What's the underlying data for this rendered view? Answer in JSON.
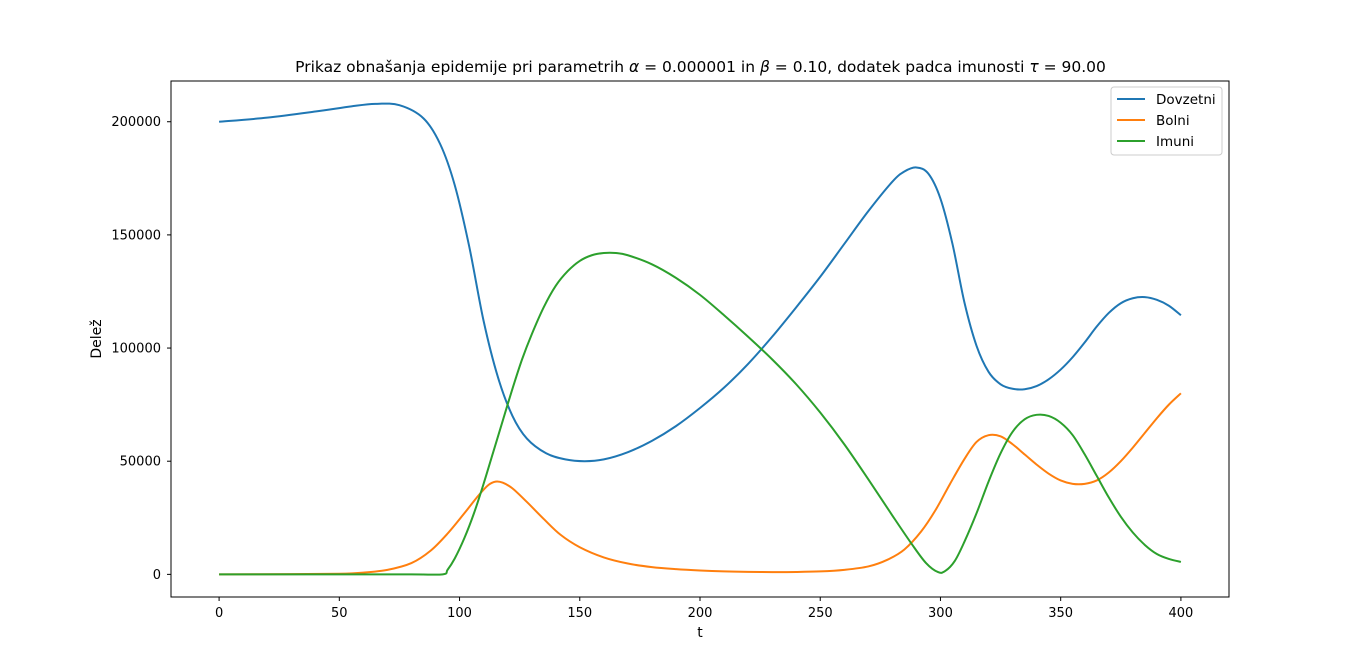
{
  "chart_data": {
    "type": "line",
    "title": "Prikaz obnašanja epidemije pri parametrih α = 0.000001 in β = 0.10, dodatek padca imunosti τ = 90.00",
    "title_parts": {
      "text1": "Prikaz obnašanja epidemije pri parametrih ",
      "alpha_sym": "α",
      "text2": " = 0.000001 in ",
      "beta_sym": "β",
      "text3": " = 0.10, dodatek padca imunosti ",
      "tau_sym": "τ",
      "text4": " = 90.00"
    },
    "xlabel": "t",
    "ylabel": "Delež",
    "xlim": [
      -20,
      420
    ],
    "ylim": [
      -10000,
      218000
    ],
    "xticks": [
      0,
      50,
      100,
      150,
      200,
      250,
      300,
      350,
      400
    ],
    "yticks": [
      0,
      50000,
      100000,
      150000,
      200000
    ],
    "legend_position": "top-right",
    "grid": false,
    "series": [
      {
        "name": "Dovzetni",
        "color": "#1f77b4",
        "points": [
          [
            0,
            200000
          ],
          [
            20,
            201800
          ],
          [
            40,
            204500
          ],
          [
            55,
            206800
          ],
          [
            65,
            207900
          ],
          [
            75,
            207300
          ],
          [
            85,
            201500
          ],
          [
            92,
            190000
          ],
          [
            98,
            172000
          ],
          [
            104,
            145000
          ],
          [
            110,
            112000
          ],
          [
            116,
            87000
          ],
          [
            122,
            70000
          ],
          [
            128,
            60000
          ],
          [
            136,
            53500
          ],
          [
            144,
            50800
          ],
          [
            152,
            50000
          ],
          [
            160,
            50800
          ],
          [
            170,
            54000
          ],
          [
            180,
            59000
          ],
          [
            190,
            65500
          ],
          [
            200,
            73500
          ],
          [
            210,
            82500
          ],
          [
            220,
            93000
          ],
          [
            230,
            105000
          ],
          [
            240,
            118000
          ],
          [
            250,
            131500
          ],
          [
            260,
            146000
          ],
          [
            270,
            160500
          ],
          [
            280,
            173500
          ],
          [
            285,
            178000
          ],
          [
            290,
            179800
          ],
          [
            295,
            177000
          ],
          [
            300,
            166000
          ],
          [
            305,
            146000
          ],
          [
            310,
            120000
          ],
          [
            315,
            101000
          ],
          [
            320,
            89500
          ],
          [
            325,
            84000
          ],
          [
            330,
            82000
          ],
          [
            335,
            81800
          ],
          [
            340,
            83200
          ],
          [
            345,
            86200
          ],
          [
            350,
            90500
          ],
          [
            355,
            96000
          ],
          [
            360,
            102500
          ],
          [
            365,
            109500
          ],
          [
            370,
            115500
          ],
          [
            375,
            119800
          ],
          [
            380,
            122000
          ],
          [
            385,
            122500
          ],
          [
            390,
            121300
          ],
          [
            395,
            118700
          ],
          [
            400,
            114500
          ]
        ]
      },
      {
        "name": "Bolni",
        "color": "#ff7f0e",
        "points": [
          [
            0,
            0
          ],
          [
            30,
            100
          ],
          [
            50,
            300
          ],
          [
            60,
            800
          ],
          [
            70,
            2000
          ],
          [
            80,
            5000
          ],
          [
            88,
            10500
          ],
          [
            95,
            18000
          ],
          [
            102,
            27000
          ],
          [
            108,
            35000
          ],
          [
            112,
            39500
          ],
          [
            115,
            41000
          ],
          [
            118,
            40500
          ],
          [
            122,
            38000
          ],
          [
            128,
            32000
          ],
          [
            135,
            24500
          ],
          [
            142,
            17500
          ],
          [
            150,
            12000
          ],
          [
            160,
            7500
          ],
          [
            170,
            4800
          ],
          [
            180,
            3200
          ],
          [
            190,
            2300
          ],
          [
            200,
            1700
          ],
          [
            210,
            1300
          ],
          [
            220,
            1100
          ],
          [
            230,
            1000
          ],
          [
            240,
            1050
          ],
          [
            250,
            1300
          ],
          [
            260,
            2000
          ],
          [
            270,
            3500
          ],
          [
            278,
            6500
          ],
          [
            285,
            11000
          ],
          [
            292,
            19000
          ],
          [
            298,
            28500
          ],
          [
            304,
            40000
          ],
          [
            310,
            51000
          ],
          [
            315,
            58500
          ],
          [
            320,
            61500
          ],
          [
            325,
            61000
          ],
          [
            330,
            57500
          ],
          [
            335,
            53000
          ],
          [
            340,
            48500
          ],
          [
            345,
            44500
          ],
          [
            350,
            41500
          ],
          [
            355,
            40000
          ],
          [
            360,
            40000
          ],
          [
            365,
            41500
          ],
          [
            370,
            45000
          ],
          [
            375,
            50000
          ],
          [
            380,
            56000
          ],
          [
            385,
            62500
          ],
          [
            390,
            69000
          ],
          [
            395,
            75000
          ],
          [
            400,
            80000
          ]
        ]
      },
      {
        "name": "Imuni",
        "color": "#2ca02c",
        "points": [
          [
            0,
            0
          ],
          [
            50,
            0
          ],
          [
            80,
            0
          ],
          [
            93,
            0
          ],
          [
            95,
            2000
          ],
          [
            98,
            7000
          ],
          [
            102,
            16000
          ],
          [
            106,
            27000
          ],
          [
            110,
            40000
          ],
          [
            114,
            54000
          ],
          [
            118,
            68000
          ],
          [
            122,
            82000
          ],
          [
            126,
            95000
          ],
          [
            130,
            106000
          ],
          [
            135,
            118000
          ],
          [
            140,
            127500
          ],
          [
            145,
            134000
          ],
          [
            150,
            138500
          ],
          [
            155,
            141000
          ],
          [
            160,
            142000
          ],
          [
            165,
            142000
          ],
          [
            170,
            141000
          ],
          [
            180,
            137000
          ],
          [
            190,
            131000
          ],
          [
            200,
            123500
          ],
          [
            210,
            114500
          ],
          [
            220,
            105000
          ],
          [
            230,
            95000
          ],
          [
            240,
            84000
          ],
          [
            250,
            71500
          ],
          [
            260,
            57500
          ],
          [
            270,
            42000
          ],
          [
            280,
            26000
          ],
          [
            288,
            13500
          ],
          [
            294,
            5000
          ],
          [
            299,
            1000
          ],
          [
            302,
            1500
          ],
          [
            306,
            6000
          ],
          [
            310,
            14500
          ],
          [
            315,
            27000
          ],
          [
            320,
            41000
          ],
          [
            325,
            53500
          ],
          [
            330,
            63000
          ],
          [
            335,
            68500
          ],
          [
            340,
            70500
          ],
          [
            345,
            70000
          ],
          [
            350,
            67000
          ],
          [
            355,
            61500
          ],
          [
            360,
            53000
          ],
          [
            365,
            43500
          ],
          [
            370,
            34000
          ],
          [
            375,
            25500
          ],
          [
            380,
            18500
          ],
          [
            385,
            13000
          ],
          [
            390,
            9000
          ],
          [
            395,
            6800
          ],
          [
            400,
            5500
          ]
        ]
      }
    ]
  }
}
